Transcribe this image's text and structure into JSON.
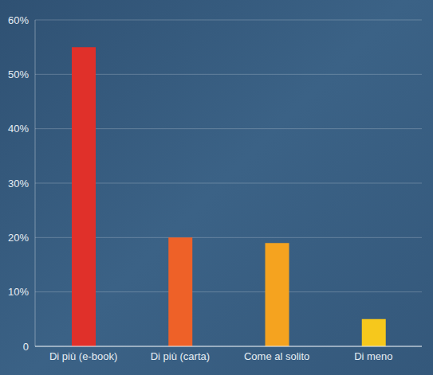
{
  "chart_data": {
    "type": "bar",
    "categories": [
      "Di più (e-book)",
      "Di più (carta)",
      "Come al solito",
      "Di meno"
    ],
    "values": [
      55,
      20,
      19,
      5
    ],
    "colors": [
      "#e0302a",
      "#ee6128",
      "#f5a31f",
      "#f6c81c"
    ],
    "ylim": [
      0,
      60
    ],
    "yticks": [
      0,
      {
        "value": 10,
        "label": "10%"
      },
      {
        "value": 20,
        "label": "20%"
      },
      {
        "value": 30,
        "label": "30%"
      },
      {
        "value": 40,
        "label": "40%"
      },
      {
        "value": 50,
        "label": "50%"
      },
      {
        "value": 60,
        "label": "60%"
      }
    ],
    "grid": true
  }
}
